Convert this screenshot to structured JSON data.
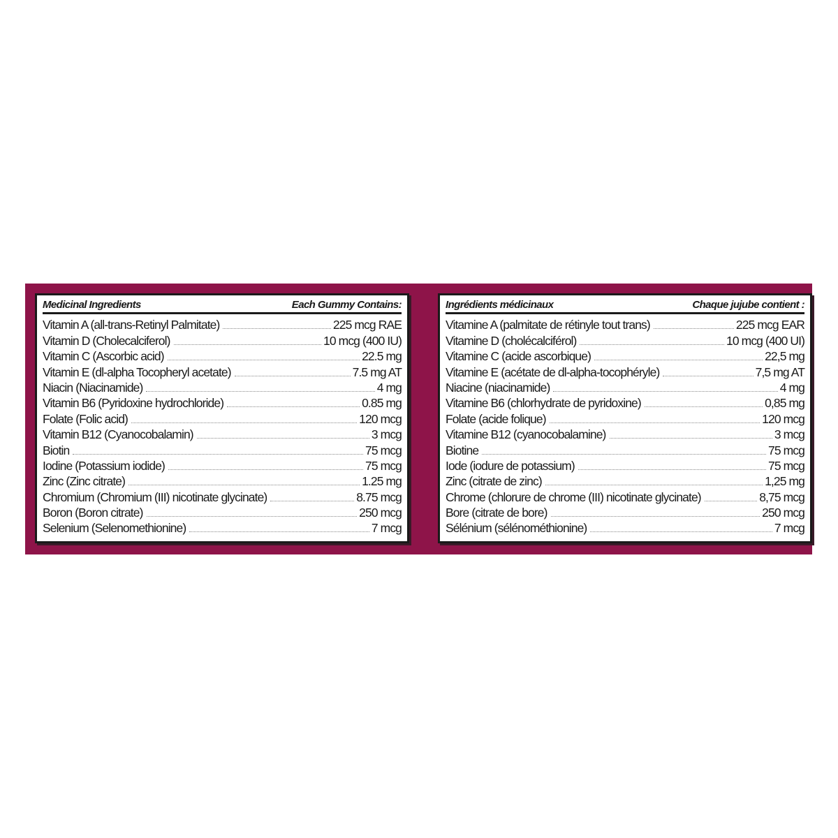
{
  "colors": {
    "band": "#8e1449",
    "frame": "#1a1a1a"
  },
  "english": {
    "header_left": "Medicinal Ingredients",
    "header_right": "Each Gummy Contains:",
    "rows": [
      {
        "name": "Vitamin A (all-trans-Retinyl Palmitate)",
        "amount": "225 mcg RAE"
      },
      {
        "name": "Vitamin D (Cholecalciferol)",
        "amount": "10 mcg (400 IU)"
      },
      {
        "name": "Vitamin C (Ascorbic acid)",
        "amount": "22.5 mg"
      },
      {
        "name": "Vitamin E (dl-alpha Tocopheryl acetate)",
        "amount": "7.5 mg AT"
      },
      {
        "name": "Niacin (Niacinamide)",
        "amount": "4 mg"
      },
      {
        "name": "Vitamin B6 (Pyridoxine hydrochloride)",
        "amount": "0.85 mg"
      },
      {
        "name": "Folate (Folic acid)",
        "amount": "120 mcg"
      },
      {
        "name": "Vitamin B12 (Cyanocobalamin)",
        "amount": "3 mcg"
      },
      {
        "name": "Biotin",
        "amount": "75 mcg"
      },
      {
        "name": "Iodine (Potassium iodide)",
        "amount": "75 mcg"
      },
      {
        "name": "Zinc (Zinc citrate)",
        "amount": "1.25 mg"
      },
      {
        "name": "Chromium (Chromium (III) nicotinate glycinate)",
        "amount": "8.75 mcg"
      },
      {
        "name": "Boron (Boron citrate)",
        "amount": "250 mcg"
      },
      {
        "name": "Selenium (Selenomethionine)",
        "amount": "7 mcg"
      }
    ]
  },
  "french": {
    "header_left": "Ingrédients médicinaux",
    "header_right": "Chaque jujube contient :",
    "rows": [
      {
        "name": "Vitamine A (palmitate de rétinyle tout trans)",
        "amount": "225 mcg EAR"
      },
      {
        "name": "Vitamine D (cholécalciférol)",
        "amount": "10 mcg (400 UI)"
      },
      {
        "name": "Vitamine C (acide ascorbique)",
        "amount": "22,5 mg"
      },
      {
        "name": "Vitamine E (acétate de dl-alpha-tocophéryle)",
        "amount": "7,5 mg AT"
      },
      {
        "name": "Niacine (niacinamide)",
        "amount": "4 mg"
      },
      {
        "name": "Vitamine B6 (chlorhydrate de pyridoxine)",
        "amount": "0,85 mg"
      },
      {
        "name": "Folate (acide folique)",
        "amount": "120 mcg"
      },
      {
        "name": "Vitamine B12 (cyanocobalamine)",
        "amount": "3 mcg"
      },
      {
        "name": "Biotine",
        "amount": "75 mcg"
      },
      {
        "name": "Iode (iodure de potassium)",
        "amount": "75 mcg"
      },
      {
        "name": "Zinc (citrate de zinc)",
        "amount": "1,25 mg"
      },
      {
        "name": "Chrome (chlorure de chrome (III) nicotinate glycinate)",
        "amount": "8,75 mcg"
      },
      {
        "name": "Bore (citrate de bore)",
        "amount": "250 mcg"
      },
      {
        "name": "Sélénium (sélénométhionine)",
        "amount": "7 mcg"
      }
    ]
  }
}
